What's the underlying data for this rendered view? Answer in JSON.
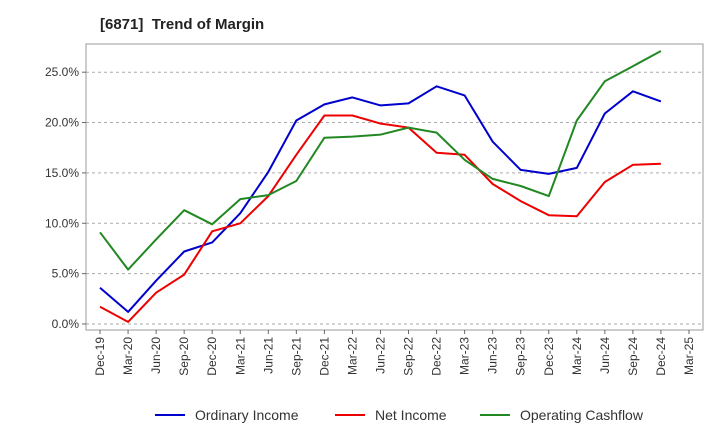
{
  "chart_data": {
    "type": "line",
    "title": "[6871]  Trend of Margin",
    "x": [
      "Dec-19",
      "Mar-20",
      "Jun-20",
      "Sep-20",
      "Dec-20",
      "Mar-21",
      "Jun-21",
      "Sep-21",
      "Dec-21",
      "Mar-22",
      "Jun-22",
      "Sep-22",
      "Dec-22",
      "Mar-23",
      "Jun-23",
      "Sep-23",
      "Dec-23",
      "Mar-24",
      "Jun-24",
      "Sep-24",
      "Dec-24",
      "Mar-25"
    ],
    "ylim": [
      -0.6,
      27.8
    ],
    "yticks": [
      0,
      5,
      10,
      15,
      20,
      25
    ],
    "ytick_labels": [
      "0.0%",
      "5.0%",
      "10.0%",
      "15.0%",
      "20.0%",
      "25.0%"
    ],
    "grid": "horizontal dashed",
    "legend_position": "bottom",
    "series": [
      {
        "name": "Ordinary Income",
        "color": "#0000cc",
        "values": [
          3.6,
          1.2,
          4.3,
          7.2,
          8.1,
          11.0,
          15.1,
          20.2,
          21.8,
          22.5,
          21.7,
          21.9,
          23.6,
          22.7,
          18.1,
          15.3,
          14.9,
          15.5,
          20.9,
          23.1,
          22.1,
          null
        ]
      },
      {
        "name": "Net Income",
        "color": "#ee0000",
        "values": [
          1.7,
          0.2,
          3.1,
          4.9,
          9.2,
          10.0,
          12.7,
          16.8,
          20.7,
          20.7,
          19.9,
          19.5,
          17.0,
          16.8,
          13.9,
          12.2,
          10.8,
          10.7,
          14.1,
          15.8,
          15.9,
          null
        ]
      },
      {
        "name": "Operating Cashflow",
        "color": "#228822",
        "values": [
          9.1,
          5.4,
          8.4,
          11.3,
          9.9,
          12.4,
          12.8,
          14.2,
          18.5,
          18.6,
          18.8,
          19.5,
          19.0,
          16.3,
          14.4,
          13.7,
          12.7,
          20.2,
          24.1,
          25.6,
          27.1,
          null
        ]
      }
    ]
  }
}
